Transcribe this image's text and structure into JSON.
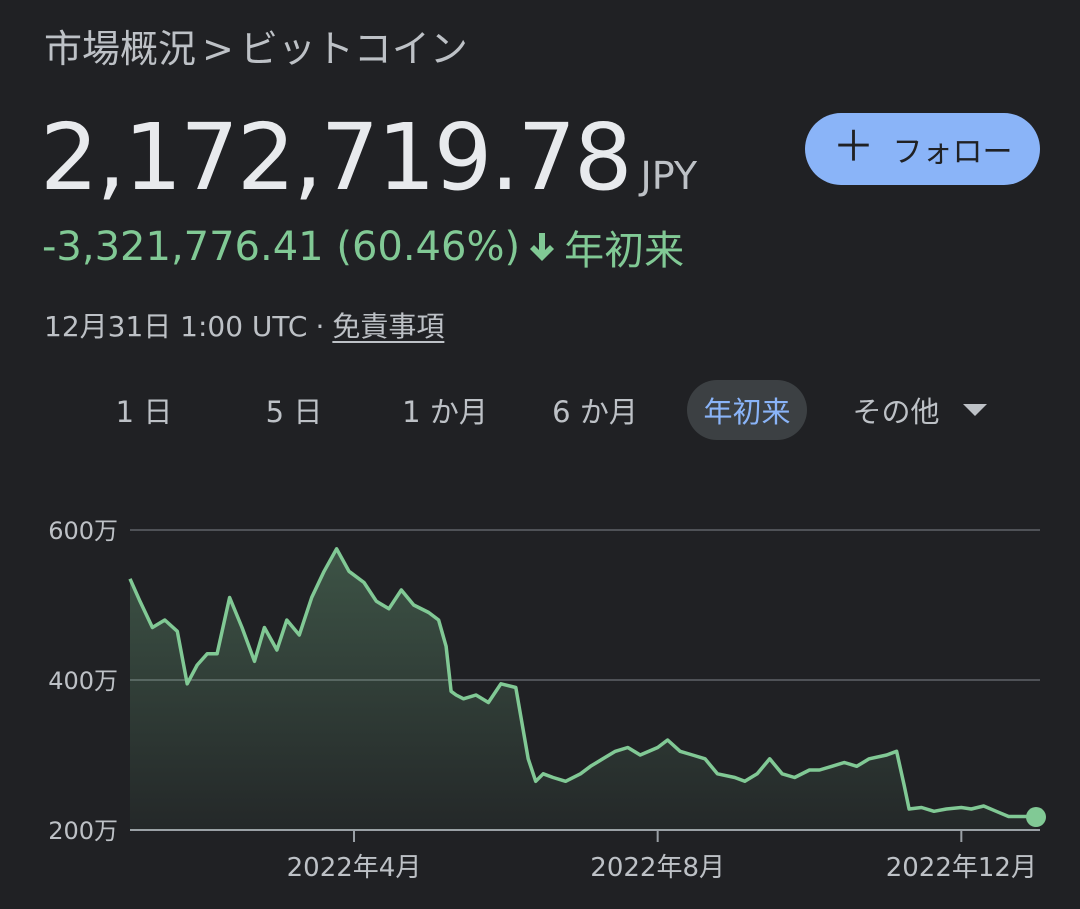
{
  "breadcrumb": {
    "parent": "市場概況",
    "separator": ">",
    "current": "ビットコイン"
  },
  "quote": {
    "price": "2,172,719.78",
    "currency": "JPY",
    "change": "-3,321,776.41 (60.46%)",
    "period": "年初来",
    "timestamp": "12月31日 1:00 UTC",
    "separator": "·",
    "disclaimer": "免責事項"
  },
  "follow_button": {
    "icon": "plus-icon",
    "label": "フォロー"
  },
  "tabs": [
    {
      "label": "1 日",
      "active": false
    },
    {
      "label": "5 日",
      "active": false
    },
    {
      "label": "1 か月",
      "active": false
    },
    {
      "label": "6 か月",
      "active": false
    },
    {
      "label": "年初来",
      "active": true
    },
    {
      "label": "その他",
      "active": false,
      "icon": "caret-down-icon"
    }
  ],
  "colors": {
    "background": "#202124",
    "accent": "#8ab4f8",
    "positive_line": "#81c995",
    "text_secondary": "#bdc1c6"
  },
  "chart_data": {
    "type": "area",
    "title": "",
    "xlabel": "",
    "ylabel": "",
    "y_unit": "万",
    "ylim": [
      200,
      600
    ],
    "y_ticks": [
      {
        "value": 600,
        "label": "600万"
      },
      {
        "value": 400,
        "label": "400万"
      },
      {
        "value": 200,
        "label": "200万"
      }
    ],
    "x_ticks": [
      {
        "date": "2022-04-01",
        "label": "2022年4月"
      },
      {
        "date": "2022-08-01",
        "label": "2022年8月"
      },
      {
        "date": "2022-12-01",
        "label": "2022年12月"
      }
    ],
    "x_start": "2022-01-01",
    "x_end": "2022-12-31",
    "grid": true,
    "series": [
      {
        "x": [
          "2022-01-01",
          "2022-01-05",
          "2022-01-10",
          "2022-01-15",
          "2022-01-20",
          "2022-01-24",
          "2022-01-28",
          "2022-02-01",
          "2022-02-05",
          "2022-02-10",
          "2022-02-15",
          "2022-02-20",
          "2022-02-24",
          "2022-03-01",
          "2022-03-05",
          "2022-03-10",
          "2022-03-15",
          "2022-03-20",
          "2022-03-25",
          "2022-03-30",
          "2022-04-05",
          "2022-04-10",
          "2022-04-15",
          "2022-04-20",
          "2022-04-25",
          "2022-05-01",
          "2022-05-05",
          "2022-05-08",
          "2022-05-10",
          "2022-05-12",
          "2022-05-15",
          "2022-05-20",
          "2022-05-25",
          "2022-05-30",
          "2022-06-05",
          "2022-06-10",
          "2022-06-13",
          "2022-06-16",
          "2022-06-20",
          "2022-06-25",
          "2022-07-01",
          "2022-07-05",
          "2022-07-10",
          "2022-07-15",
          "2022-07-20",
          "2022-07-25",
          "2022-08-01",
          "2022-08-05",
          "2022-08-10",
          "2022-08-15",
          "2022-08-20",
          "2022-08-25",
          "2022-09-01",
          "2022-09-05",
          "2022-09-10",
          "2022-09-15",
          "2022-09-20",
          "2022-09-25",
          "2022-10-01",
          "2022-10-05",
          "2022-10-10",
          "2022-10-15",
          "2022-10-20",
          "2022-10-25",
          "2022-11-01",
          "2022-11-05",
          "2022-11-08",
          "2022-11-10",
          "2022-11-15",
          "2022-11-20",
          "2022-11-25",
          "2022-12-01",
          "2022-12-05",
          "2022-12-10",
          "2022-12-15",
          "2022-12-20",
          "2022-12-25",
          "2022-12-31"
        ],
        "values": [
          535,
          505,
          470,
          480,
          465,
          395,
          420,
          435,
          435,
          510,
          470,
          425,
          470,
          440,
          480,
          460,
          510,
          545,
          575,
          545,
          530,
          505,
          495,
          520,
          500,
          490,
          480,
          445,
          385,
          380,
          375,
          380,
          370,
          395,
          390,
          295,
          265,
          275,
          270,
          265,
          275,
          285,
          295,
          305,
          310,
          300,
          310,
          320,
          305,
          300,
          295,
          275,
          270,
          265,
          275,
          295,
          275,
          270,
          280,
          280,
          285,
          290,
          285,
          295,
          300,
          305,
          260,
          228,
          230,
          225,
          228,
          230,
          228,
          232,
          225,
          218,
          218,
          218
        ]
      }
    ],
    "last_point": {
      "date": "2022-12-31",
      "value": 217.27
    }
  }
}
